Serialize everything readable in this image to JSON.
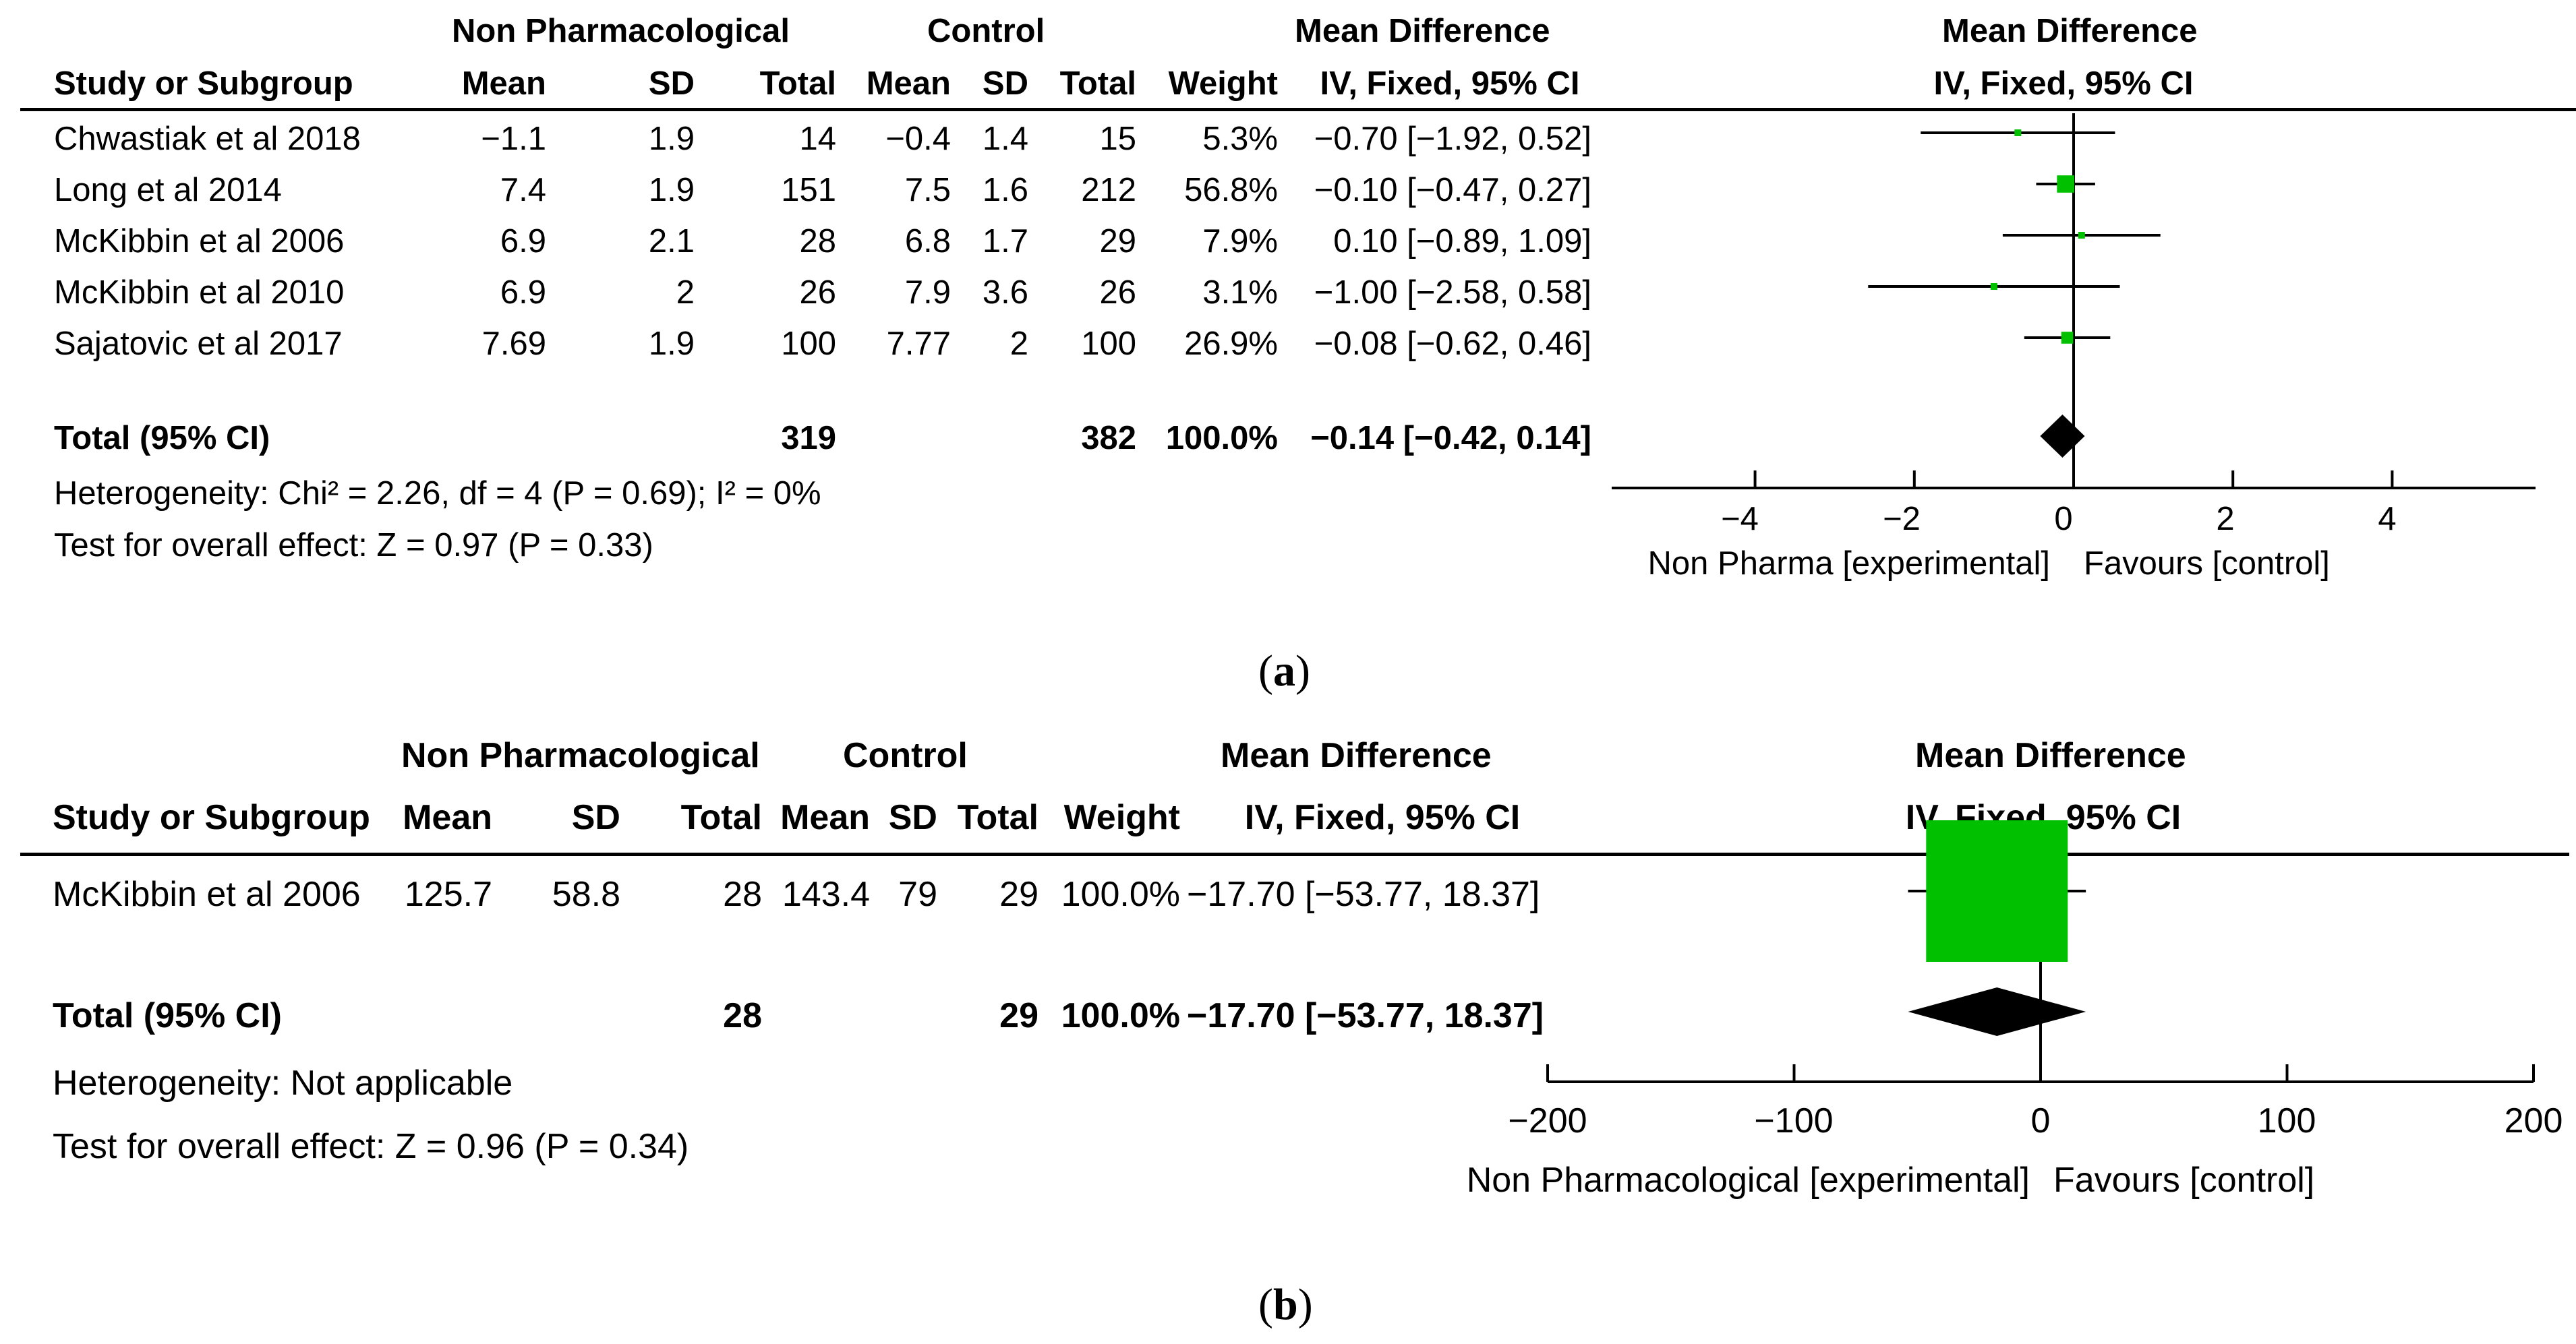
{
  "panels": [
    {
      "id": "a",
      "caption_letter": "a",
      "headers": {
        "group_exp": "Non Pharmacological",
        "group_ctrl": "Control",
        "md_col": "Mean Difference",
        "md_col_sub": "IV, Fixed, 95% CI",
        "plot_title": "Mean Difference",
        "plot_sub": "IV, Fixed, 95% CI",
        "study": "Study or Subgroup",
        "mean": "Mean",
        "sd": "SD",
        "total": "Total",
        "weight": "Weight"
      },
      "studies": [
        {
          "name": "Chwastiak et al 2018",
          "e_mean": "−1.1",
          "e_sd": "1.9",
          "e_total": "14",
          "c_mean": "−0.4",
          "c_sd": "1.4",
          "c_total": "15",
          "weight": "5.3%",
          "ci_text": "−0.70 [−1.92, 0.52]"
        },
        {
          "name": "Long et al 2014",
          "e_mean": "7.4",
          "e_sd": "1.9",
          "e_total": "151",
          "c_mean": "7.5",
          "c_sd": "1.6",
          "c_total": "212",
          "weight": "56.8%",
          "ci_text": "−0.10 [−0.47, 0.27]"
        },
        {
          "name": "McKibbin et al 2006",
          "e_mean": "6.9",
          "e_sd": "2.1",
          "e_total": "28",
          "c_mean": "6.8",
          "c_sd": "1.7",
          "c_total": "29",
          "weight": "7.9%",
          "ci_text": "0.10 [−0.89, 1.09]"
        },
        {
          "name": "McKibbin et al 2010",
          "e_mean": "6.9",
          "e_sd": "2",
          "e_total": "26",
          "c_mean": "7.9",
          "c_sd": "3.6",
          "c_total": "26",
          "weight": "3.1%",
          "ci_text": "−1.00 [−2.58, 0.58]"
        },
        {
          "name": "Sajatovic et al 2017",
          "e_mean": "7.69",
          "e_sd": "1.9",
          "e_total": "100",
          "c_mean": "7.77",
          "c_sd": "2",
          "c_total": "100",
          "weight": "26.9%",
          "ci_text": "−0.08 [−0.62, 0.46]"
        }
      ],
      "total": {
        "label": "Total (95% CI)",
        "e_total": "319",
        "c_total": "382",
        "weight": "100.0%",
        "ci_text": "−0.14 [−0.42, 0.14]"
      },
      "heterogeneity": "Heterogeneity: Chi² = 2.26, df = 4 (P = 0.69); I² = 0%",
      "overall": "Test for overall effect: Z = 0.97 (P = 0.33)",
      "favours_left": "Non Pharma [experimental]",
      "favours_right": "Favours [control]"
    },
    {
      "id": "b",
      "caption_letter": "b",
      "headers": {
        "group_exp": "Non Pharmacological",
        "group_ctrl": "Control",
        "md_col": "Mean Difference",
        "md_col_sub": "IV, Fixed, 95% CI",
        "plot_title": "Mean Difference",
        "plot_sub": "IV, Fixed, 95% CI",
        "study": "Study or Subgroup",
        "mean": "Mean",
        "sd": "SD",
        "total": "Total",
        "weight": "Weight"
      },
      "studies": [
        {
          "name": "McKibbin et al 2006",
          "e_mean": "125.7",
          "e_sd": "58.8",
          "e_total": "28",
          "c_mean": "143.4",
          "c_sd": "79",
          "c_total": "29",
          "weight": "100.0%",
          "ci_text": "−17.70 [−53.77, 18.37]"
        }
      ],
      "total": {
        "label": "Total (95% CI)",
        "e_total": "28",
        "c_total": "29",
        "weight": "100.0%",
        "ci_text": "−17.70 [−53.77, 18.37]"
      },
      "heterogeneity": "Heterogeneity: Not applicable",
      "overall": "Test for overall effect: Z = 0.96 (P = 0.34)",
      "favours_left": "Non Pharmacological [experimental]",
      "favours_right": "Favours [control]"
    }
  ],
  "chart_data": [
    {
      "type": "forest",
      "title": "Mean Difference IV, Fixed, 95% CI",
      "xlim": [
        -5.8,
        5.8
      ],
      "ticks": [
        -4,
        -2,
        0,
        2,
        4
      ],
      "tick_labels": [
        "−4",
        "−2",
        "0",
        "2",
        "4"
      ],
      "studies": [
        {
          "name": "Chwastiak et al 2018",
          "md": -0.7,
          "lo": -1.92,
          "hi": 0.52,
          "weight": 5.3
        },
        {
          "name": "Long et al 2014",
          "md": -0.1,
          "lo": -0.47,
          "hi": 0.27,
          "weight": 56.8
        },
        {
          "name": "McKibbin et al 2006",
          "md": 0.1,
          "lo": -0.89,
          "hi": 1.09,
          "weight": 7.9
        },
        {
          "name": "McKibbin et al 2010",
          "md": -1.0,
          "lo": -2.58,
          "hi": 0.58,
          "weight": 3.1
        },
        {
          "name": "Sajatovic et al 2017",
          "md": -0.08,
          "lo": -0.62,
          "hi": 0.46,
          "weight": 26.9
        }
      ],
      "pooled": {
        "md": -0.14,
        "lo": -0.42,
        "hi": 0.14
      },
      "xlabel_left": "Non Pharma [experimental]",
      "xlabel_right": "Favours [control]"
    },
    {
      "type": "forest",
      "title": "Mean Difference IV, Fixed, 95% CI",
      "xlim": [
        -200,
        200
      ],
      "ticks": [
        -200,
        -100,
        0,
        100,
        200
      ],
      "tick_labels": [
        "−200",
        "−100",
        "0",
        "100",
        "200"
      ],
      "studies": [
        {
          "name": "McKibbin et al 2006",
          "md": -17.7,
          "lo": -53.77,
          "hi": 18.37,
          "weight": 100.0
        }
      ],
      "pooled": {
        "md": -17.7,
        "lo": -53.77,
        "hi": 18.37
      },
      "xlabel_left": "Non Pharmacological [experimental]",
      "xlabel_right": "Favours [control]"
    }
  ],
  "colors": {
    "marker": "#00c000",
    "diamond": "#000000",
    "line": "#000000"
  }
}
